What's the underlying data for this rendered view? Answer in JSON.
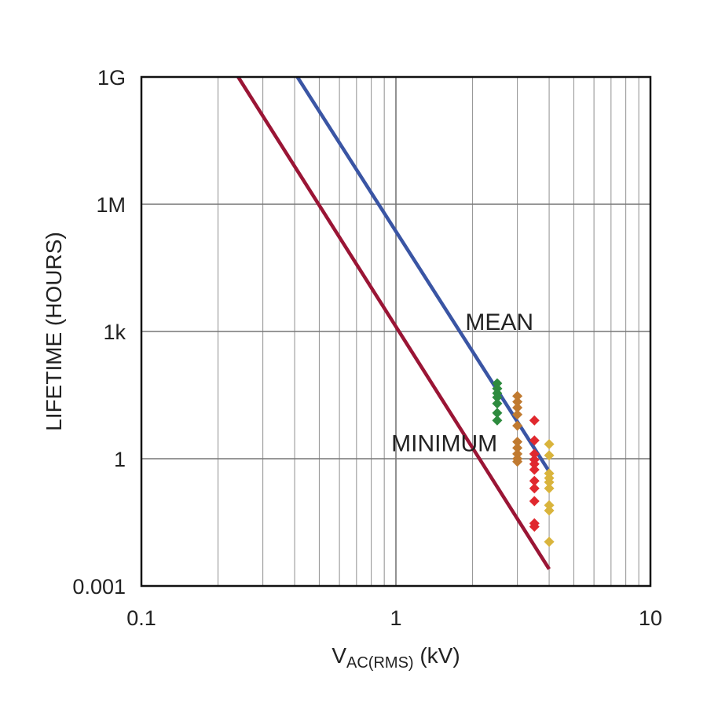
{
  "chart_data": {
    "type": "line",
    "xscale": "log",
    "yscale": "log",
    "xlim": [
      0.1,
      10
    ],
    "ylim": [
      0.001,
      1000000000
    ],
    "grid": true,
    "xlabel": {
      "main": "V",
      "sub": "AC(RMS)",
      "unit": " (kV)"
    },
    "ylabel": "LIFETIME (HOURS)",
    "x_ticks": [
      {
        "value": 0.1,
        "label": "0.1"
      },
      {
        "value": 1,
        "label": "1"
      },
      {
        "value": 10,
        "label": "10"
      }
    ],
    "y_ticks": [
      {
        "value": 0.001,
        "label": "0.001"
      },
      {
        "value": 1,
        "label": "1"
      },
      {
        "value": 1000,
        "label": "1k"
      },
      {
        "value": 1000000,
        "label": "1M"
      },
      {
        "value": 1000000000,
        "label": "1G"
      }
    ],
    "series": [
      {
        "name": "MEAN",
        "color": "#3a55a4",
        "points": [
          [
            0.41,
            1000000000
          ],
          [
            4.0,
            0.5
          ]
        ]
      },
      {
        "name": "MINIMUM",
        "color": "#9a1535",
        "points": [
          [
            0.24,
            1000000000
          ],
          [
            4.0,
            0.0025
          ]
        ]
      }
    ],
    "scatter": [
      {
        "color": "#2e8b3e",
        "points": [
          [
            2.5,
            60
          ],
          [
            2.5,
            45
          ],
          [
            2.5,
            35
          ],
          [
            2.5,
            28
          ],
          [
            2.5,
            20
          ],
          [
            2.5,
            12
          ],
          [
            2.5,
            8
          ]
        ]
      },
      {
        "color": "#c07a30",
        "points": [
          [
            3.0,
            30
          ],
          [
            3.0,
            22
          ],
          [
            3.0,
            16
          ],
          [
            3.0,
            11
          ],
          [
            3.0,
            6
          ],
          [
            3.0,
            2.5
          ],
          [
            3.0,
            1.8
          ],
          [
            3.0,
            1.3
          ],
          [
            3.0,
            1.0
          ],
          [
            3.0,
            0.85
          ]
        ]
      },
      {
        "color": "#e0282e",
        "points": [
          [
            3.5,
            8
          ],
          [
            3.5,
            2.7
          ],
          [
            3.5,
            1.3
          ],
          [
            3.5,
            0.95
          ],
          [
            3.5,
            0.75
          ],
          [
            3.5,
            0.55
          ],
          [
            3.5,
            0.3
          ],
          [
            3.5,
            0.2
          ],
          [
            3.5,
            0.1
          ],
          [
            3.5,
            0.03
          ],
          [
            3.5,
            0.025
          ]
        ]
      },
      {
        "color": "#d9b43c",
        "points": [
          [
            4.0,
            2.2
          ],
          [
            4.0,
            1.2
          ],
          [
            4.0,
            0.45
          ],
          [
            4.0,
            0.35
          ],
          [
            4.0,
            0.28
          ],
          [
            4.0,
            0.2
          ],
          [
            4.0,
            0.08
          ],
          [
            4.0,
            0.06
          ],
          [
            4.0,
            0.011
          ]
        ]
      }
    ],
    "annotations": [
      {
        "text": "MEAN",
        "x": 2.55,
        "y": 1100
      },
      {
        "text": "MINIMUM",
        "x": 1.55,
        "y": 1.5
      }
    ]
  }
}
